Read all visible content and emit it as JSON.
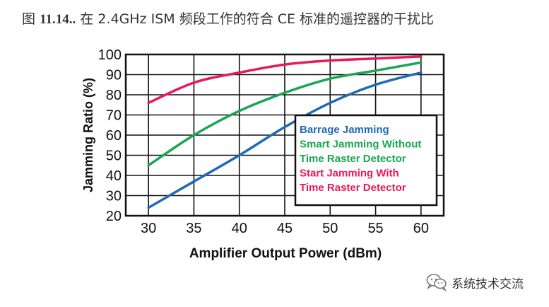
{
  "caption": {
    "label": "图",
    "number": "11.14..",
    "text": "在 2.4GHz ISM 频段工作的符合 CE 标准的遥控器的干扰比"
  },
  "watermark": {
    "text": "系统技术交流",
    "icon": "wechat-icon"
  },
  "chart_data": {
    "type": "line",
    "xlabel": "Amplifier Output Power (dBm)",
    "ylabel": "Jamming Ratio (%)",
    "xlim": [
      27.5,
      62.5
    ],
    "ylim": [
      20,
      100
    ],
    "xticks": [
      30,
      35,
      40,
      45,
      50,
      55,
      60
    ],
    "yticks": [
      20,
      30,
      40,
      50,
      60,
      70,
      80,
      90,
      100
    ],
    "grid": true,
    "legend_position": "center-right",
    "series": [
      {
        "name": "Barrage Jamming",
        "color": "#1f6ab5",
        "x": [
          30,
          35,
          40,
          45,
          50,
          55,
          60
        ],
        "values": [
          24,
          37,
          50,
          64,
          76,
          85,
          91
        ]
      },
      {
        "name": "Smart Jamming Without Time Raster Detector",
        "color": "#1aa650",
        "x": [
          30,
          35,
          40,
          45,
          50,
          55,
          60
        ],
        "values": [
          45,
          60,
          72,
          81,
          88,
          92,
          96
        ]
      },
      {
        "name": "Start Jamming With Time Raster Detector",
        "color": "#e8195a",
        "x": [
          30,
          35,
          40,
          45,
          50,
          55,
          60
        ],
        "values": [
          76,
          86,
          91,
          95,
          97,
          98,
          99
        ]
      }
    ],
    "legend_lines": [
      [
        "Barrage Jamming"
      ],
      [
        "Smart Jamming Without",
        "Time Raster Detector"
      ],
      [
        "Start Jamming With",
        "Time Raster Detector"
      ]
    ]
  }
}
